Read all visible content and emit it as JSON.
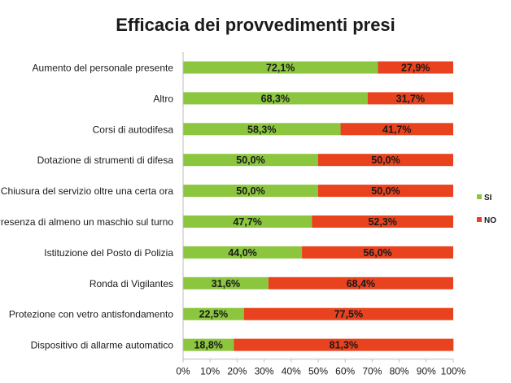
{
  "chart_data": {
    "type": "bar",
    "orientation": "horizontal",
    "stacked": true,
    "title": "Efficacia dei provvedimenti presi",
    "categories": [
      "Aumento del personale presente",
      "Altro",
      "Corsi di autodifesa",
      "Dotazione di strumenti di difesa",
      "Chiusura del servizio oltre una certa ora",
      "Presenza di almeno un maschio sul turno",
      "Istituzione del Posto di Polizia",
      "Ronda di Vigilantes",
      "Protezione con vetro antisfondamento",
      "Dispositivo di allarme automatico"
    ],
    "series": [
      {
        "name": "SI",
        "color": "#8cc63f",
        "values": [
          72.1,
          68.3,
          58.3,
          50.0,
          50.0,
          47.7,
          44.0,
          31.6,
          22.5,
          18.8
        ],
        "labels": [
          "72,1%",
          "68,3%",
          "58,3%",
          "50,0%",
          "50,0%",
          "47,7%",
          "44,0%",
          "31,6%",
          "22,5%",
          "18,8%"
        ]
      },
      {
        "name": "NO",
        "color": "#e8421e",
        "values": [
          27.9,
          31.7,
          41.7,
          50.0,
          50.0,
          52.3,
          56.0,
          68.4,
          77.5,
          81.3
        ],
        "labels": [
          "27,9%",
          "31,7%",
          "41,7%",
          "50,0%",
          "50,0%",
          "52,3%",
          "56,0%",
          "68,4%",
          "77,5%",
          "81,3%"
        ]
      }
    ],
    "xlim": [
      0,
      100
    ],
    "x_ticks": [
      "0%",
      "10%",
      "20%",
      "30%",
      "40%",
      "50%",
      "60%",
      "70%",
      "80%",
      "90%",
      "100%"
    ],
    "grid": false,
    "legend": "right"
  }
}
